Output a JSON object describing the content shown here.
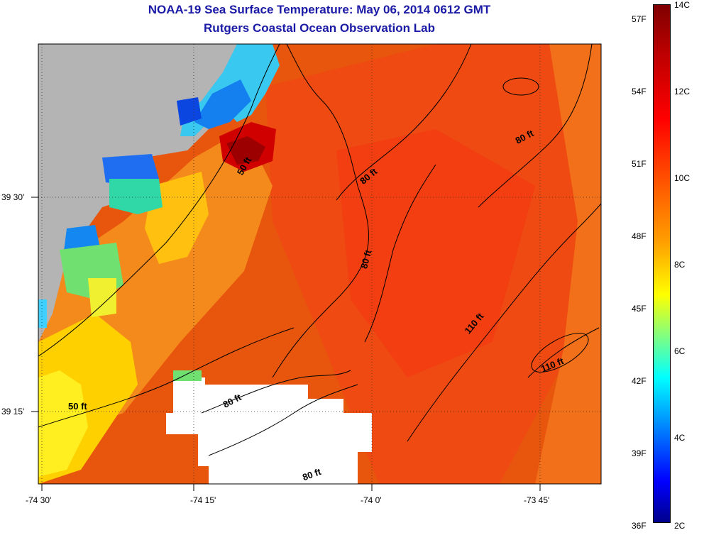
{
  "header": {
    "title": "NOAA-19 Sea Surface Temperature:  May 06, 2014 0612 GMT",
    "subtitle": "Rutgers Coastal Ocean Observation Lab"
  },
  "map": {
    "x_ticks": [
      "-74 30'",
      "-74 15'",
      "-74 0'",
      "-73 45'"
    ],
    "y_ticks": [
      "39 30'",
      "39 15'"
    ],
    "depth_labels": [
      "50 ft",
      "80 ft",
      "80 ft",
      "80 ft",
      "50 ft",
      "80 ft",
      "80 ft",
      "110 ft",
      "110 ft"
    ],
    "land_color": "#b4b4b4",
    "nodata_color": "#ffffff"
  },
  "colorbar": {
    "celsius": [
      "14C",
      "12C",
      "10C",
      "8C",
      "6C",
      "4C",
      "2C"
    ],
    "fahrenheit": [
      "57F",
      "54F",
      "51F",
      "48F",
      "45F",
      "42F",
      "39F",
      "36F"
    ]
  }
}
